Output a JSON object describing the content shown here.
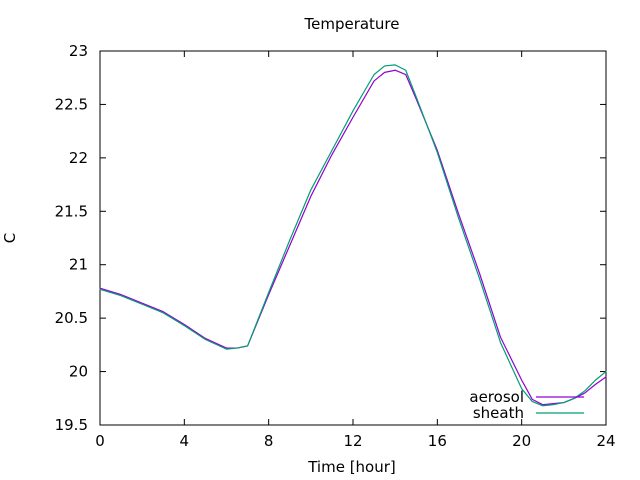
{
  "chart_data": {
    "type": "line",
    "title": "Temperature",
    "xlabel": "Time [hour]",
    "ylabel": "C",
    "xlim": [
      0,
      24
    ],
    "ylim": [
      19.5,
      23
    ],
    "xticks": [
      0,
      4,
      8,
      12,
      16,
      20,
      24
    ],
    "yticks": [
      19.5,
      20,
      20.5,
      21,
      21.5,
      22,
      22.5,
      23
    ],
    "xtick_labels": [
      "0",
      "4",
      "8",
      "12",
      "16",
      "20",
      "24"
    ],
    "ytick_labels": [
      "19.5",
      "20",
      "20.5",
      "21",
      "21.5",
      "22",
      "22.5",
      "23"
    ],
    "grid": false,
    "legend_position": "bottom-right",
    "series": [
      {
        "name": "aerosol",
        "color": "#9400d3",
        "x": [
          0,
          1,
          2,
          3,
          4,
          5,
          6,
          6.5,
          7,
          8,
          9,
          10,
          11,
          12,
          13,
          13.5,
          14,
          14.5,
          15,
          16,
          17,
          18,
          19,
          20,
          20.5,
          21,
          21.5,
          22,
          22.5,
          23,
          23.5,
          24
        ],
        "y": [
          20.78,
          20.72,
          20.64,
          20.56,
          20.44,
          20.31,
          20.22,
          20.22,
          20.24,
          20.72,
          21.18,
          21.64,
          22.03,
          22.38,
          22.72,
          22.8,
          22.82,
          22.78,
          22.55,
          22.07,
          21.48,
          20.92,
          20.32,
          19.92,
          19.74,
          19.69,
          19.7,
          19.71,
          19.75,
          19.8,
          19.88,
          19.95
        ]
      },
      {
        "name": "sheath",
        "color": "#009e73",
        "x": [
          0,
          1,
          2,
          3,
          4,
          5,
          6,
          6.5,
          7,
          8,
          9,
          10,
          11,
          12,
          13,
          13.5,
          14,
          14.5,
          15,
          16,
          17,
          18,
          19,
          20,
          20.5,
          21,
          21.5,
          22,
          22.5,
          23,
          23.5,
          24
        ],
        "y": [
          20.77,
          20.71,
          20.63,
          20.55,
          20.43,
          20.3,
          20.21,
          20.22,
          20.24,
          20.74,
          21.23,
          21.7,
          22.07,
          22.44,
          22.78,
          22.86,
          22.87,
          22.82,
          22.57,
          22.05,
          21.44,
          20.87,
          20.27,
          19.84,
          19.72,
          19.68,
          19.69,
          19.71,
          19.75,
          19.82,
          19.92,
          20.0
        ]
      }
    ]
  }
}
